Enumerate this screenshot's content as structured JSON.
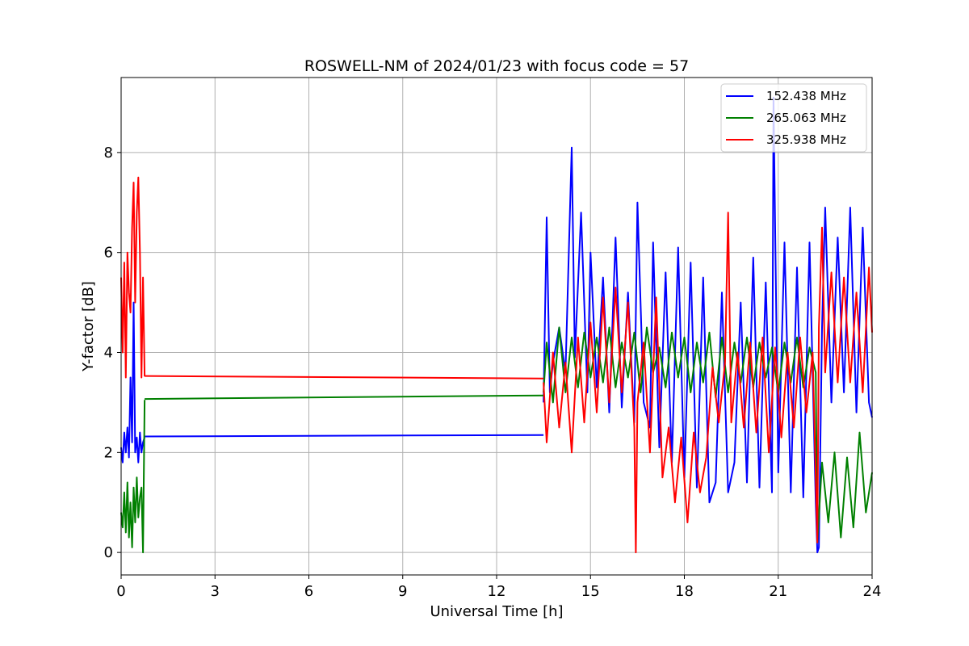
{
  "chart_data": {
    "type": "line",
    "title": "ROSWELL-NM of 2024/01/23 with focus code = 57",
    "xlabel": "Universal Time [h]",
    "ylabel": "Y-factor [dB]",
    "xlim": [
      0,
      24
    ],
    "ylim": [
      -0.45,
      9.5
    ],
    "xticks": [
      0,
      3,
      6,
      9,
      12,
      15,
      18,
      21,
      24
    ],
    "yticks": [
      0,
      2,
      4,
      6,
      8
    ],
    "grid": true,
    "legend_position": "top-right",
    "series": [
      {
        "name": "152.438 MHz",
        "color": "#0000ff",
        "segments": [
          {
            "x": [
              0,
              0.05,
              0.1,
              0.15,
              0.2,
              0.25,
              0.3,
              0.35,
              0.4,
              0.45,
              0.5,
              0.55,
              0.6,
              0.65,
              0.7,
              0.75
            ],
            "y": [
              2.1,
              1.8,
              2.4,
              2.0,
              2.5,
              1.9,
              3.5,
              2.2,
              5.0,
              2.0,
              2.3,
              1.8,
              2.4,
              2.0,
              2.2,
              2.3
            ]
          },
          {
            "x": [
              0.75,
              13.5
            ],
            "y": [
              2.32,
              2.35
            ]
          },
          {
            "x": [
              13.5,
              13.6,
              13.7,
              13.8,
              14.0,
              14.2,
              14.4,
              14.5,
              14.7,
              14.9,
              15.0,
              15.2,
              15.4,
              15.6,
              15.8,
              16.0,
              16.2,
              16.4,
              16.5,
              16.7,
              16.9,
              17.0,
              17.2,
              17.4,
              17.6,
              17.8,
              18.0,
              18.2,
              18.4,
              18.6,
              18.8,
              19.0,
              19.2,
              19.4,
              19.6,
              19.8,
              20.0,
              20.2,
              20.4,
              20.6,
              20.8,
              20.85,
              21.0,
              21.2,
              21.4,
              21.6,
              21.8,
              22.0,
              22.2,
              22.25,
              22.3,
              22.4,
              22.5,
              22.7,
              22.9,
              23.1,
              23.3,
              23.5,
              23.7,
              23.9,
              24.0
            ],
            "y": [
              3.0,
              6.7,
              3.2,
              3.8,
              4.5,
              3.6,
              8.1,
              3.9,
              6.8,
              3.2,
              6.0,
              3.3,
              5.5,
              2.8,
              6.3,
              2.9,
              5.2,
              2.6,
              7.0,
              3.0,
              2.5,
              6.2,
              2.1,
              5.6,
              1.8,
              6.1,
              1.5,
              5.8,
              1.3,
              5.5,
              1.0,
              1.4,
              5.2,
              1.2,
              1.8,
              5.0,
              1.4,
              5.9,
              1.3,
              5.4,
              1.2,
              9.1,
              1.6,
              6.2,
              1.2,
              5.7,
              1.1,
              6.2,
              1.0,
              0.0,
              0.1,
              4.5,
              6.9,
              3.0,
              6.3,
              3.2,
              6.9,
              2.8,
              6.5,
              3.0,
              2.7
            ]
          }
        ]
      },
      {
        "name": "265.063 MHz",
        "color": "#008000",
        "segments": [
          {
            "x": [
              0,
              0.05,
              0.1,
              0.15,
              0.2,
              0.25,
              0.3,
              0.35,
              0.4,
              0.45,
              0.5,
              0.55,
              0.6,
              0.65,
              0.7,
              0.75
            ],
            "y": [
              0.8,
              0.5,
              1.2,
              0.4,
              1.4,
              0.3,
              1.0,
              0.1,
              1.3,
              0.6,
              1.5,
              0.7,
              1.1,
              1.3,
              0.0,
              3.05
            ]
          },
          {
            "x": [
              0.75,
              13.5
            ],
            "y": [
              3.07,
              3.14
            ]
          },
          {
            "x": [
              13.5,
              13.6,
              13.8,
              14.0,
              14.2,
              14.4,
              14.6,
              14.8,
              15.0,
              15.2,
              15.4,
              15.6,
              15.8,
              16.0,
              16.2,
              16.4,
              16.6,
              16.8,
              17.0,
              17.2,
              17.4,
              17.6,
              17.8,
              18.0,
              18.2,
              18.4,
              18.6,
              18.8,
              19.0,
              19.2,
              19.4,
              19.6,
              19.8,
              20.0,
              20.2,
              20.4,
              20.6,
              20.8,
              21.0,
              21.2,
              21.4,
              21.6,
              21.8,
              22.0,
              22.2,
              22.25,
              22.4,
              22.6,
              22.8,
              23.0,
              23.2,
              23.4,
              23.6,
              23.8,
              24.0
            ],
            "y": [
              3.2,
              4.2,
              3.0,
              4.5,
              3.2,
              4.3,
              3.3,
              4.4,
              3.5,
              4.3,
              3.4,
              4.5,
              3.3,
              4.2,
              3.5,
              4.4,
              3.2,
              4.5,
              3.6,
              4.1,
              3.3,
              4.4,
              3.5,
              4.3,
              3.2,
              4.2,
              3.4,
              4.4,
              3.1,
              4.3,
              3.2,
              4.2,
              3.4,
              4.3,
              3.3,
              4.2,
              3.5,
              4.1,
              3.2,
              4.2,
              3.4,
              4.3,
              3.3,
              4.1,
              3.6,
              0.2,
              1.8,
              0.6,
              2.0,
              0.3,
              1.9,
              0.5,
              2.4,
              0.8,
              1.6
            ]
          }
        ]
      },
      {
        "name": "325.938 MHz",
        "color": "#ff0000",
        "segments": [
          {
            "x": [
              0,
              0.05,
              0.1,
              0.15,
              0.2,
              0.25,
              0.3,
              0.35,
              0.4,
              0.45,
              0.5,
              0.55,
              0.6,
              0.65,
              0.7,
              0.75
            ],
            "y": [
              5.5,
              4.0,
              5.8,
              3.5,
              6.0,
              5.2,
              4.8,
              6.5,
              7.4,
              5.0,
              6.8,
              7.5,
              6.0,
              3.5,
              5.5,
              3.52
            ]
          },
          {
            "x": [
              0.75,
              13.5
            ],
            "y": [
              3.53,
              3.48
            ]
          },
          {
            "x": [
              13.5,
              13.6,
              13.8,
              14.0,
              14.2,
              14.4,
              14.6,
              14.8,
              15.0,
              15.2,
              15.4,
              15.6,
              15.8,
              16.0,
              16.2,
              16.4,
              16.45,
              16.5,
              16.7,
              16.9,
              17.1,
              17.3,
              17.5,
              17.7,
              17.9,
              18.1,
              18.3,
              18.5,
              18.7,
              18.9,
              19.1,
              19.3,
              19.4,
              19.5,
              19.7,
              19.9,
              20.1,
              20.3,
              20.5,
              20.7,
              20.9,
              21.1,
              21.3,
              21.5,
              21.7,
              21.9,
              22.1,
              22.2,
              22.25,
              22.3,
              22.4,
              22.5,
              22.7,
              22.9,
              23.1,
              23.3,
              23.5,
              23.7,
              23.9,
              24.0
            ],
            "y": [
              3.4,
              2.2,
              4.0,
              2.5,
              3.8,
              2.0,
              4.3,
              2.6,
              4.6,
              2.8,
              5.1,
              3.0,
              5.3,
              3.2,
              5.0,
              2.5,
              0.0,
              3.0,
              4.2,
              2.0,
              5.1,
              1.5,
              2.5,
              1.0,
              2.3,
              0.6,
              2.4,
              1.2,
              1.9,
              3.7,
              2.6,
              3.8,
              6.8,
              2.6,
              4.0,
              2.5,
              4.2,
              2.4,
              4.3,
              2.0,
              4.1,
              2.3,
              4.0,
              2.5,
              4.3,
              2.8,
              4.0,
              1.5,
              0.2,
              4.5,
              6.5,
              3.6,
              5.6,
              3.4,
              5.5,
              3.4,
              5.2,
              3.2,
              5.7,
              4.4
            ]
          }
        ]
      }
    ]
  }
}
